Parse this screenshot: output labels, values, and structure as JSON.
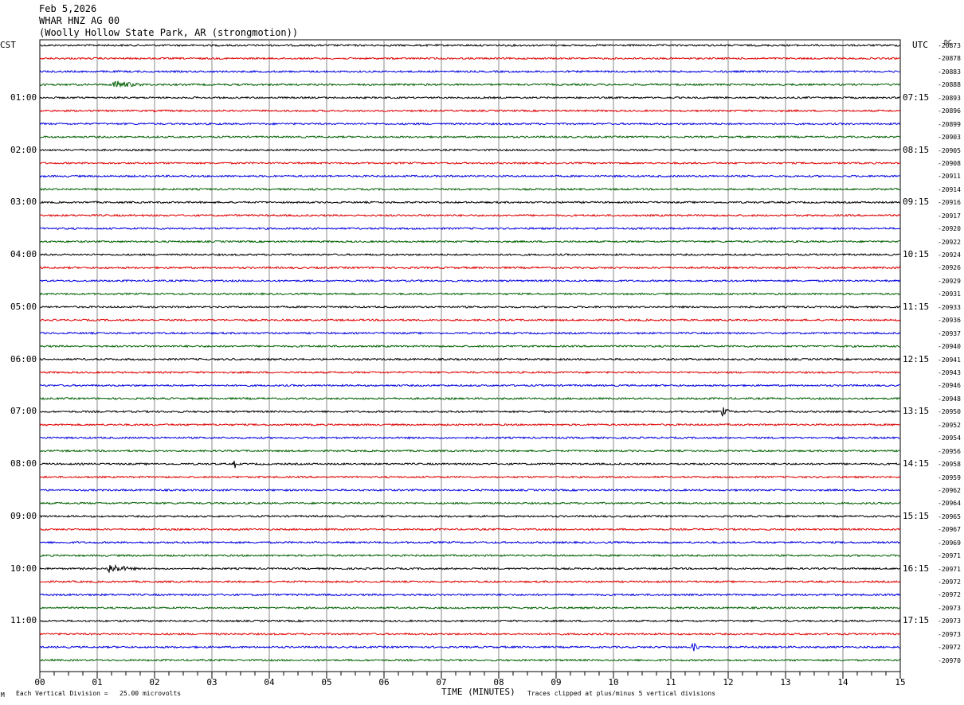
{
  "header": {
    "date": "Feb 5,2026",
    "station": "WHAR HNZ AG 00",
    "location": "(Woolly Hollow State Park, AR (strongmotion))"
  },
  "left_tz": "CST",
  "right_tz": "UTC",
  "dc_label": "DC",
  "footer": {
    "scale_mark": "M",
    "vertical_division": "Each Vertical Division =   25.00 microvolts",
    "xlabel": "TIME (MINUTES)",
    "clip_note": "Traces clipped at plus/minus 5 vertical divisions"
  },
  "colors": [
    "#000000",
    "#e00000",
    "#0000e0",
    "#006000"
  ],
  "chart_data": {
    "type": "line",
    "xlim": [
      0,
      15
    ],
    "x_ticks": [
      "00",
      "01",
      "02",
      "03",
      "04",
      "05",
      "06",
      "07",
      "08",
      "09",
      "10",
      "11",
      "12",
      "13",
      "14",
      "15"
    ],
    "rows_per_hour": 4,
    "row_minutes": 15,
    "left_hour_labels": [
      "01:00",
      "02:00",
      "03:00",
      "04:00",
      "05:00",
      "06:00",
      "07:00",
      "08:00",
      "09:00",
      "10:00",
      "11:00"
    ],
    "right_hour_labels": [
      "07:15",
      "08:15",
      "09:15",
      "10:15",
      "11:15",
      "12:15",
      "13:15",
      "14:15",
      "15:15",
      "16:15",
      "17:15"
    ],
    "dc_offsets": [
      "-20873",
      "-20878",
      "-20883",
      "-20888",
      "-20893",
      "-20896",
      "-20899",
      "-20903",
      "-20905",
      "-20908",
      "-20911",
      "-20914",
      "-20916",
      "-20917",
      "-20920",
      "-20922",
      "-20924",
      "-20926",
      "-20929",
      "-20931",
      "-20933",
      "-20936",
      "-20937",
      "-20940",
      "-20941",
      "-20943",
      "-20946",
      "-20948",
      "-20950",
      "-20952",
      "-20954",
      "-20956",
      "-20958",
      "-20959",
      "-20962",
      "-20964",
      "-20965",
      "-20967",
      "-20969",
      "-20971",
      "-20971",
      "-20972",
      "-20972",
      "-20973",
      "-20973",
      "-20973",
      "-20972",
      "-20970"
    ],
    "events": [
      {
        "row": 3,
        "minute": 1.3,
        "amp": 6,
        "width": 0.7
      },
      {
        "row": 28,
        "minute": 11.9,
        "amp": 7,
        "width": 0.2
      },
      {
        "row": 32,
        "minute": 3.4,
        "amp": 6,
        "width": 0.05
      },
      {
        "row": 40,
        "minute": 1.2,
        "amp": 7,
        "width": 0.6
      },
      {
        "row": 46,
        "minute": 11.4,
        "amp": 8,
        "width": 0.15
      }
    ]
  }
}
